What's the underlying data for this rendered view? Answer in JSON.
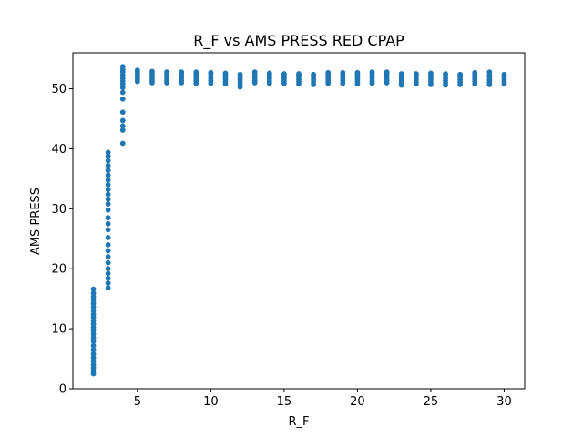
{
  "chart_data": {
    "type": "scatter",
    "title": "R_F vs AMS PRESS RED CPAP",
    "xlabel": "R_F",
    "ylabel": "AMS PRESS",
    "xlim": [
      0.6,
      31.4
    ],
    "ylim": [
      0,
      56
    ],
    "xticks": [
      5,
      10,
      15,
      20,
      25,
      30
    ],
    "yticks": [
      0,
      10,
      20,
      30,
      40,
      50
    ],
    "grid": false,
    "legend": "none",
    "marker_color": "#1f77b4",
    "series": [
      {
        "groups": [
          {
            "x": 2,
            "y": [
              2.5,
              3.0,
              3.5,
              4.0,
              4.6,
              5.2,
              5.8,
              6.5,
              7.2,
              7.9,
              8.5,
              9.1,
              9.7,
              10.2,
              10.8,
              11.3,
              11.9,
              12.4,
              13.0,
              13.6,
              14.2,
              14.8,
              15.3,
              15.9,
              16.6
            ]
          },
          {
            "x": 3,
            "y": [
              16.8,
              17.6,
              18.4,
              19.2,
              20.0,
              21.0,
              22.0,
              23.0,
              24.0,
              25.2,
              26.5,
              27.5,
              28.5,
              29.8,
              30.8,
              31.6,
              32.4,
              33.2,
              34.0,
              34.8,
              35.6,
              36.4,
              37.2,
              38.0,
              38.8,
              39.4
            ]
          },
          {
            "x": 4,
            "y": [
              40.9,
              43.1,
              43.8,
              44.7,
              46.1,
              48.3,
              49.4,
              50.2,
              50.8,
              51.3,
              51.8,
              52.3,
              52.8,
              53.2,
              53.7
            ]
          },
          {
            "x": 5,
            "y": [
              51.2,
              51.6,
              52.0,
              52.4,
              52.8,
              53.1
            ]
          },
          {
            "x": 6,
            "y": [
              51.0,
              51.4,
              51.8,
              52.2,
              52.6,
              52.9
            ]
          },
          {
            "x": 7,
            "y": [
              51.0,
              51.4,
              51.8,
              52.2,
              52.6,
              52.8
            ]
          },
          {
            "x": 8,
            "y": [
              51.0,
              51.4,
              51.8,
              52.2,
              52.6,
              52.8
            ]
          },
          {
            "x": 9,
            "y": [
              50.9,
              51.3,
              51.7,
              52.1,
              52.5,
              52.8
            ]
          },
          {
            "x": 10,
            "y": [
              50.9,
              51.3,
              51.7,
              52.1,
              52.5,
              52.7
            ]
          },
          {
            "x": 11,
            "y": [
              50.8,
              51.2,
              51.6,
              52.0,
              52.4,
              52.6
            ]
          },
          {
            "x": 12,
            "y": [
              50.3,
              50.8,
              51.2,
              51.6,
              52.0,
              52.4
            ]
          },
          {
            "x": 13,
            "y": [
              51.0,
              51.4,
              51.8,
              52.2,
              52.6,
              52.8
            ]
          },
          {
            "x": 14,
            "y": [
              50.9,
              51.3,
              51.7,
              52.1,
              52.4,
              52.6
            ]
          },
          {
            "x": 15,
            "y": [
              50.9,
              51.3,
              51.7,
              52.0,
              52.3,
              52.5
            ]
          },
          {
            "x": 16,
            "y": [
              50.8,
              51.2,
              51.6,
              52.0,
              52.3,
              52.5
            ]
          },
          {
            "x": 17,
            "y": [
              50.7,
              51.1,
              51.5,
              51.9,
              52.2,
              52.4
            ]
          },
          {
            "x": 18,
            "y": [
              50.9,
              51.3,
              51.7,
              52.1,
              52.5,
              52.7
            ]
          },
          {
            "x": 19,
            "y": [
              50.9,
              51.3,
              51.7,
              52.1,
              52.5,
              52.7
            ]
          },
          {
            "x": 20,
            "y": [
              50.8,
              51.2,
              51.6,
              52.0,
              52.4,
              52.7
            ]
          },
          {
            "x": 21,
            "y": [
              50.9,
              51.3,
              51.7,
              52.1,
              52.5,
              52.8
            ]
          },
          {
            "x": 22,
            "y": [
              51.0,
              51.4,
              51.8,
              52.2,
              52.6,
              52.8
            ]
          },
          {
            "x": 23,
            "y": [
              50.6,
              51.0,
              51.4,
              51.8,
              52.2,
              52.5
            ]
          },
          {
            "x": 24,
            "y": [
              50.8,
              51.2,
              51.6,
              52.0,
              52.4,
              52.5
            ]
          },
          {
            "x": 25,
            "y": [
              50.7,
              51.1,
              51.5,
              51.9,
              52.3,
              52.6
            ]
          },
          {
            "x": 26,
            "y": [
              50.6,
              51.0,
              51.4,
              51.8,
              52.2,
              52.5
            ]
          },
          {
            "x": 27,
            "y": [
              50.7,
              51.1,
              51.5,
              51.9,
              52.2,
              52.4
            ]
          },
          {
            "x": 28,
            "y": [
              50.8,
              51.2,
              51.6,
              52.0,
              52.4,
              52.7
            ]
          },
          {
            "x": 29,
            "y": [
              50.7,
              51.1,
              51.5,
              51.9,
              52.3,
              52.8
            ]
          },
          {
            "x": 30,
            "y": [
              50.8,
              51.2,
              51.6,
              52.0,
              52.4
            ]
          }
        ]
      }
    ]
  }
}
